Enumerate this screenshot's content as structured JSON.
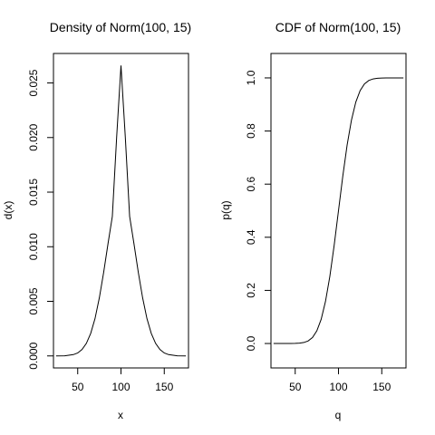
{
  "chart_data": [
    {
      "type": "line",
      "title": "Density of Norm(100, 15)",
      "xlabel": "x",
      "ylabel": "d(x)",
      "xlim": [
        22,
        178
      ],
      "ylim": [
        -0.0011,
        0.0277
      ],
      "x_ticks": [
        50,
        100,
        150
      ],
      "x_tick_labels": [
        "50",
        "100",
        "150"
      ],
      "y_ticks": [
        0.0,
        0.005,
        0.01,
        0.015,
        0.02,
        0.025
      ],
      "y_tick_labels": [
        "0.000",
        "0.005",
        "0.010",
        "0.015",
        "0.020",
        "0.025"
      ],
      "grid": false,
      "series": [
        {
          "x": [
            25,
            35,
            45,
            50,
            55,
            60,
            65,
            70,
            75,
            80,
            85,
            90,
            95,
            100,
            105,
            110,
            115,
            120,
            125,
            130,
            135,
            140,
            145,
            150,
            155,
            165,
            175
          ],
          "y": [
            0.0,
            1e-05,
            0.00012,
            0.00027,
            0.00059,
            0.00115,
            0.00206,
            0.00342,
            0.00532,
            0.00766,
            0.01027,
            0.01278,
            0.02003,
            0.0266,
            0.02003,
            0.01278,
            0.01027,
            0.00766,
            0.00532,
            0.00342,
            0.00206,
            0.00115,
            0.00059,
            0.00027,
            0.00012,
            1e-05,
            0.0
          ]
        }
      ]
    },
    {
      "type": "line",
      "title": "CDF of Norm(100, 15)",
      "xlabel": "q",
      "ylabel": "p(q)",
      "xlim": [
        22,
        178
      ],
      "ylim": [
        -0.092,
        1.092
      ],
      "x_ticks": [
        50,
        100,
        150
      ],
      "x_tick_labels": [
        "50",
        "100",
        "150"
      ],
      "y_ticks": [
        0.0,
        0.2,
        0.4,
        0.6,
        0.8,
        1.0
      ],
      "y_tick_labels": [
        "0.0",
        "0.2",
        "0.4",
        "0.6",
        "0.8",
        "1.0"
      ],
      "grid": false,
      "series": [
        {
          "x": [
            25,
            35,
            45,
            50,
            55,
            60,
            65,
            70,
            75,
            80,
            85,
            90,
            95,
            100,
            105,
            110,
            115,
            120,
            125,
            130,
            135,
            140,
            145,
            150,
            155,
            165,
            175
          ],
          "y": [
            0.0,
            0.0001,
            0.0001,
            0.0004,
            0.0013,
            0.0038,
            0.0098,
            0.0228,
            0.0478,
            0.0912,
            0.1587,
            0.2525,
            0.3694,
            0.5,
            0.6306,
            0.7475,
            0.8413,
            0.9088,
            0.9522,
            0.9772,
            0.9902,
            0.9962,
            0.9987,
            0.9996,
            0.9999,
            1.0,
            1.0
          ]
        }
      ]
    }
  ]
}
